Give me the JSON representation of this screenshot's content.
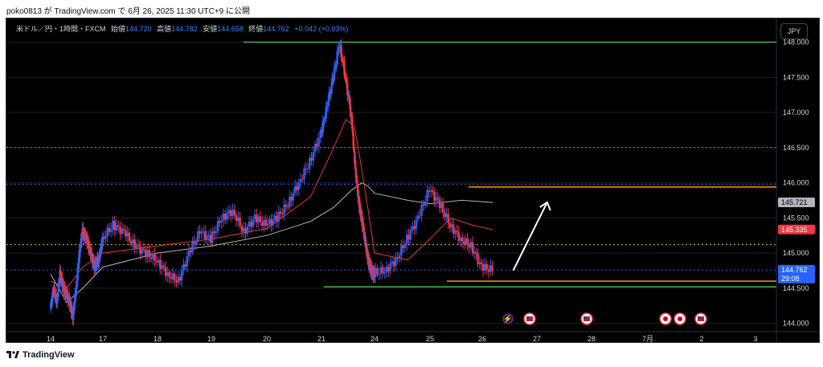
{
  "attribution": "poko0813 が TradingView.com で 6月 26, 2025 11:30 UTC+9 に公開",
  "footer_brand": "TradingView",
  "header": {
    "symbol": "米ドル／円・1時間・FXCM",
    "open_label": "始値",
    "open": "144.720",
    "high_label": "高値",
    "high": "144.782",
    "low_label": "安値",
    "low": "144.658",
    "close_label": "終値",
    "close": "144.762",
    "change": "+0.042 (+0.03%)"
  },
  "currency_button": "JPY",
  "colors": {
    "up": "#2962ff",
    "down": "#f23645",
    "ma_fast": "#e53935",
    "ma_slow": "#b2b5be",
    "support_green": "#4caf50",
    "range_orange": "#ff9800",
    "level_purple": "#ba68c8",
    "level_blue_dotted": "#2962ff",
    "level_yellow_dotted": "#d4c21a",
    "arrow": "#ffffff"
  },
  "chart_data": {
    "type": "candlestick",
    "ylim": [
      143.95,
      148.2
    ],
    "y_ticks": [
      "148.000",
      "147.500",
      "147.000",
      "146.500",
      "146.000",
      "145.500",
      "145.000",
      "144.500",
      "144.000"
    ],
    "x_ticks": [
      "14",
      "17",
      "18",
      "19",
      "20",
      "21",
      "24",
      "25",
      "26",
      "27",
      "28",
      "7月",
      "2",
      "3"
    ],
    "horizontal_lines": [
      {
        "price": 148.0,
        "style": "solid",
        "color": "support_green"
      },
      {
        "price": 144.52,
        "style": "solid",
        "color": "support_green"
      },
      {
        "price": 145.94,
        "style": "solid",
        "color": "range_orange"
      },
      {
        "price": 144.6,
        "style": "solid",
        "color": "range_orange"
      },
      {
        "price": 146.5,
        "style": "dotted",
        "color": "level_purple"
      },
      {
        "price": 145.98,
        "style": "dotted",
        "color": "level_blue_dotted"
      },
      {
        "price": 145.12,
        "style": "dotted",
        "color": "level_yellow_dotted"
      },
      {
        "price": 144.76,
        "style": "dotted",
        "color": "level_blue_dotted"
      }
    ],
    "price_labels": [
      {
        "text": "145.721",
        "kind": "grey"
      },
      {
        "text": "145.335",
        "kind": "red"
      },
      {
        "text": "144.762",
        "kind": "blue"
      },
      {
        "text": "29:08",
        "kind": "blue"
      }
    ],
    "event_markers": [
      "lightning",
      "us-flag",
      "us-flag",
      "jp-flag",
      "jp-flag",
      "us-flag"
    ],
    "close_path": [
      [
        14.0,
        144.2
      ],
      [
        14.2,
        144.5
      ],
      [
        14.4,
        144.3
      ],
      [
        14.6,
        144.7
      ],
      [
        14.8,
        144.5
      ],
      [
        15.0,
        144.4
      ],
      [
        15.2,
        144.3
      ],
      [
        15.4,
        144.1
      ],
      [
        15.6,
        144.5
      ],
      [
        15.8,
        145.0
      ],
      [
        16.0,
        145.3
      ],
      [
        16.2,
        145.2
      ],
      [
        16.4,
        145.0
      ],
      [
        16.6,
        144.8
      ],
      [
        16.8,
        144.9
      ],
      [
        17.0,
        145.2
      ],
      [
        17.2,
        145.4
      ],
      [
        17.4,
        145.3
      ],
      [
        17.6,
        145.1
      ],
      [
        17.8,
        145.0
      ],
      [
        18.0,
        144.9
      ],
      [
        18.2,
        144.7
      ],
      [
        18.4,
        144.6
      ],
      [
        18.6,
        145.0
      ],
      [
        18.8,
        145.3
      ],
      [
        19.0,
        145.2
      ],
      [
        19.2,
        145.5
      ],
      [
        19.4,
        145.6
      ],
      [
        19.6,
        145.3
      ],
      [
        19.8,
        145.5
      ],
      [
        20.0,
        145.4
      ],
      [
        20.2,
        145.5
      ],
      [
        20.4,
        145.7
      ],
      [
        20.6,
        146.0
      ],
      [
        20.8,
        146.3
      ],
      [
        21.0,
        146.7
      ],
      [
        21.2,
        147.1
      ],
      [
        21.4,
        147.5
      ],
      [
        21.6,
        147.98
      ],
      [
        21.8,
        147.5
      ],
      [
        22.0,
        146.9
      ],
      [
        22.2,
        146.4
      ],
      [
        22.4,
        146.0
      ],
      [
        22.6,
        145.7
      ],
      [
        22.8,
        145.5
      ],
      [
        23.0,
        145.3
      ],
      [
        23.2,
        145.1
      ],
      [
        23.4,
        144.9
      ],
      [
        23.6,
        144.8
      ],
      [
        23.8,
        144.7
      ],
      [
        24.0,
        144.72
      ],
      [
        24.2,
        144.75
      ],
      [
        24.4,
        144.9
      ],
      [
        24.6,
        145.2
      ],
      [
        24.8,
        145.5
      ],
      [
        25.0,
        145.9
      ],
      [
        25.2,
        145.7
      ],
      [
        25.4,
        145.4
      ],
      [
        25.6,
        145.2
      ],
      [
        25.8,
        145.1
      ],
      [
        26.0,
        144.8
      ],
      [
        26.2,
        144.76
      ]
    ],
    "ma_fast": [
      [
        14.0,
        144.6
      ],
      [
        15.0,
        144.5
      ],
      [
        16.0,
        144.8
      ],
      [
        17.0,
        145.0
      ],
      [
        18.0,
        145.1
      ],
      [
        19.0,
        145.2
      ],
      [
        20.0,
        145.35
      ],
      [
        20.8,
        145.8
      ],
      [
        21.4,
        146.5
      ],
      [
        21.8,
        146.9
      ],
      [
        22.2,
        146.8
      ],
      [
        22.8,
        146.2
      ],
      [
        23.4,
        145.6
      ],
      [
        24.0,
        145.0
      ],
      [
        24.6,
        144.9
      ],
      [
        25.0,
        145.2
      ],
      [
        25.4,
        145.5
      ],
      [
        25.8,
        145.4
      ],
      [
        26.2,
        145.33
      ]
    ],
    "ma_slow": [
      [
        14.0,
        144.7
      ],
      [
        15.0,
        144.3
      ],
      [
        16.0,
        144.5
      ],
      [
        17.0,
        144.8
      ],
      [
        18.0,
        145.0
      ],
      [
        19.0,
        145.1
      ],
      [
        20.0,
        145.25
      ],
      [
        20.8,
        145.45
      ],
      [
        21.4,
        145.65
      ],
      [
        22.0,
        145.9
      ],
      [
        22.8,
        146.0
      ],
      [
        23.4,
        145.95
      ],
      [
        24.0,
        145.85
      ],
      [
        24.6,
        145.75
      ],
      [
        25.0,
        145.7
      ],
      [
        25.6,
        145.75
      ],
      [
        26.2,
        145.72
      ]
    ],
    "arrow": {
      "from": [
        25.9,
        144.75
      ],
      "to": [
        26.6,
        145.95
      ]
    }
  }
}
